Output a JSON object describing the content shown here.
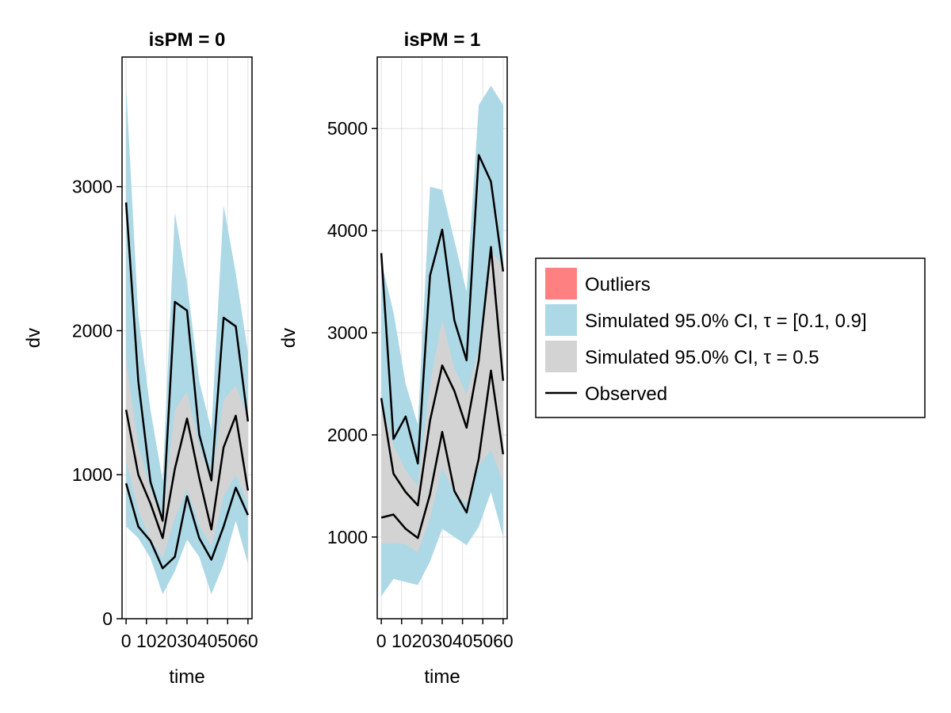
{
  "chart_data": {
    "type": "area",
    "legend": {
      "placement": "right",
      "entries": [
        {
          "label": "Outliers",
          "color": "#ff8080",
          "kind": "patch"
        },
        {
          "label": "Simulated 95.0% CI, τ = [0.1, 0.9]",
          "color": "#add8e6",
          "kind": "patch"
        },
        {
          "label": "Simulated 95.0% CI, τ = 0.5",
          "color": "#d3d3d3",
          "kind": "patch"
        },
        {
          "label": "Observed",
          "color": "#000000",
          "kind": "line"
        }
      ]
    },
    "panels": [
      {
        "title": "isPM = 0",
        "xlabel": "time",
        "ylabel": "dv",
        "xlim": [
          -2,
          62
        ],
        "ylim": [
          0,
          3900
        ],
        "grid": true,
        "xticks": [
          0,
          10,
          20,
          30,
          40,
          50,
          60
        ],
        "xtick_labels": [
          "0",
          "10",
          "20",
          "30",
          "40",
          "50",
          "60"
        ],
        "yticks": [
          0,
          1000,
          2000,
          3000
        ],
        "ytick_labels": [
          "0",
          "1000",
          "2000",
          "3000"
        ],
        "x": [
          0,
          6,
          12,
          18,
          24,
          30,
          36,
          42,
          48,
          54,
          60
        ],
        "ci_outer_upper": {
          "lower": [
            1200,
            700,
            620,
            480,
            1000,
            1130,
            700,
            580,
            1450,
            1300,
            1100
          ],
          "upper": [
            3700,
            2100,
            1450,
            960,
            2820,
            2330,
            1650,
            1310,
            2870,
            2400,
            1850
          ]
        },
        "ci_outer_lower": {
          "lower": [
            640,
            560,
            420,
            170,
            330,
            550,
            430,
            170,
            380,
            680,
            380
          ],
          "upper": [
            1150,
            850,
            620,
            490,
            830,
            1050,
            760,
            700,
            900,
            1150,
            1000
          ]
        },
        "ci_median": {
          "lower": [
            1100,
            750,
            550,
            420,
            700,
            900,
            650,
            500,
            850,
            1000,
            800
          ],
          "upper": [
            1800,
            1200,
            900,
            700,
            1450,
            1580,
            1200,
            950,
            1520,
            1620,
            1400
          ]
        },
        "observed": [
          [
            2890,
            1650,
            950,
            680,
            2200,
            2140,
            1280,
            960,
            2090,
            2030,
            1370
          ],
          [
            1450,
            1000,
            800,
            560,
            1040,
            1390,
            980,
            620,
            1190,
            1410,
            890
          ],
          [
            940,
            640,
            540,
            350,
            430,
            850,
            560,
            410,
            640,
            910,
            720
          ]
        ]
      },
      {
        "title": "isPM = 1",
        "xlabel": "time",
        "ylabel": "dv",
        "xlim": [
          -2,
          62
        ],
        "ylim": [
          200,
          5700
        ],
        "grid": true,
        "xticks": [
          0,
          10,
          20,
          30,
          40,
          50,
          60
        ],
        "xtick_labels": [
          "0",
          "10",
          "20",
          "30",
          "40",
          "50",
          "60"
        ],
        "yticks": [
          1000,
          2000,
          3000,
          4000,
          5000
        ],
        "ytick_labels": [
          "1000",
          "2000",
          "3000",
          "4000",
          "5000"
        ],
        "x": [
          0,
          6,
          12,
          18,
          24,
          30,
          36,
          42,
          48,
          54,
          60
        ],
        "ci_outer_upper": {
          "lower": [
            2200,
            1800,
            1400,
            1300,
            2000,
            2300,
            2000,
            1900,
            2300,
            2600,
            2400
          ],
          "upper": [
            3700,
            3200,
            2500,
            2100,
            4430,
            4400,
            3900,
            3400,
            5230,
            5420,
            5230
          ]
        },
        "ci_outer_lower": {
          "lower": [
            420,
            590,
            560,
            530,
            760,
            1080,
            1000,
            920,
            1100,
            1440,
            1000
          ],
          "upper": [
            1300,
            1400,
            1100,
            1000,
            1700,
            2200,
            1700,
            1500,
            2050,
            2500,
            2100
          ]
        },
        "ci_median": {
          "lower": [
            940,
            940,
            930,
            850,
            1180,
            1680,
            1430,
            1320,
            1700,
            1850,
            1540
          ],
          "upper": [
            2300,
            1900,
            1650,
            1500,
            2500,
            3130,
            2650,
            2400,
            2850,
            3800,
            3650
          ]
        },
        "observed": [
          [
            3780,
            1960,
            2180,
            1720,
            3560,
            4010,
            3120,
            2730,
            4740,
            4480,
            3600
          ],
          [
            2360,
            1620,
            1440,
            1310,
            2140,
            2680,
            2430,
            2070,
            2730,
            3840,
            2530
          ],
          [
            1190,
            1220,
            1080,
            990,
            1420,
            2030,
            1450,
            1240,
            1770,
            2630,
            1810
          ]
        ]
      }
    ]
  }
}
